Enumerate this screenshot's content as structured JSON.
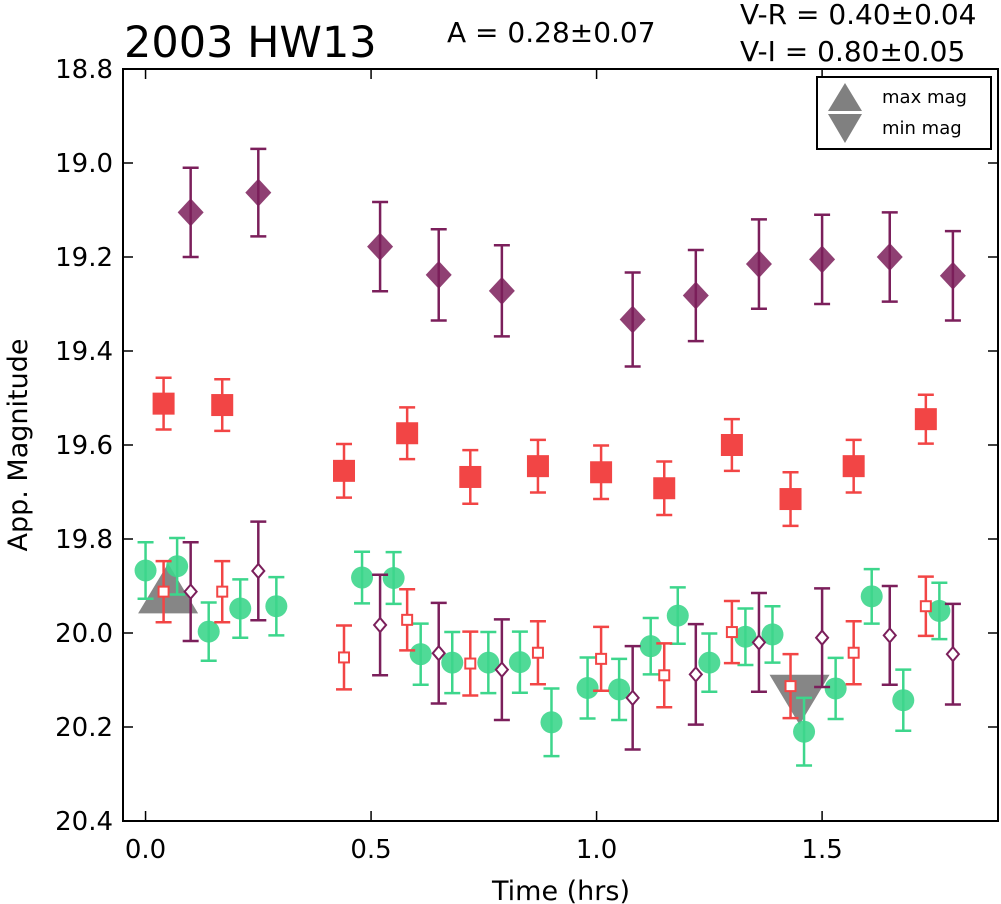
{
  "chart_data": {
    "type": "scatter",
    "title": "2003 HW13",
    "annotations": {
      "amplitude": "A  = 0.28±0.07",
      "v_minus_r": "V-R = 0.40±0.04",
      "v_minus_i": "V-I  = 0.80±0.05"
    },
    "xlabel": "Time (hrs)",
    "ylabel": "App. Magnitude",
    "xlim": [
      -0.05,
      1.89
    ],
    "ylim": [
      20.4,
      18.8
    ],
    "y_inverted": true,
    "xticks": [
      "0.0",
      "0.5",
      "1.0",
      "1.5"
    ],
    "xtick_values": [
      0.0,
      0.5,
      1.0,
      1.5
    ],
    "yticks": [
      "18.8",
      "19.0",
      "19.2",
      "19.4",
      "19.6",
      "19.8",
      "20.0",
      "20.2",
      "20.4"
    ],
    "ytick_values": [
      18.8,
      19.0,
      19.2,
      19.4,
      19.6,
      19.8,
      20.0,
      20.2,
      20.4
    ],
    "grid": false,
    "legend": {
      "position": "top-right",
      "entries": [
        {
          "label": "max mag",
          "marker": "triangle-up",
          "color": "#808080"
        },
        {
          "label": "min mag",
          "marker": "triangle-down",
          "color": "#808080"
        }
      ]
    },
    "series": [
      {
        "marker": "diamond-filled",
        "color": "#7b1f5b",
        "points": [
          {
            "x": 0.1,
            "y": 19.105,
            "err": 0.095
          },
          {
            "x": 0.25,
            "y": 19.063,
            "err": 0.093
          },
          {
            "x": 0.52,
            "y": 19.178,
            "err": 0.095
          },
          {
            "x": 0.65,
            "y": 19.238,
            "err": 0.097
          },
          {
            "x": 0.79,
            "y": 19.272,
            "err": 0.097
          },
          {
            "x": 1.08,
            "y": 19.333,
            "err": 0.1
          },
          {
            "x": 1.22,
            "y": 19.282,
            "err": 0.097
          },
          {
            "x": 1.36,
            "y": 19.215,
            "err": 0.095
          },
          {
            "x": 1.5,
            "y": 19.205,
            "err": 0.095
          },
          {
            "x": 1.65,
            "y": 19.2,
            "err": 0.095
          },
          {
            "x": 1.79,
            "y": 19.24,
            "err": 0.095
          }
        ]
      },
      {
        "marker": "square-filled",
        "color": "#f24545",
        "points": [
          {
            "x": 0.04,
            "y": 19.512,
            "err": 0.055
          },
          {
            "x": 0.17,
            "y": 19.515,
            "err": 0.055
          },
          {
            "x": 0.44,
            "y": 19.655,
            "err": 0.057
          },
          {
            "x": 0.58,
            "y": 19.575,
            "err": 0.055
          },
          {
            "x": 0.72,
            "y": 19.668,
            "err": 0.057
          },
          {
            "x": 0.87,
            "y": 19.645,
            "err": 0.056
          },
          {
            "x": 1.01,
            "y": 19.658,
            "err": 0.057
          },
          {
            "x": 1.15,
            "y": 19.692,
            "err": 0.057
          },
          {
            "x": 1.3,
            "y": 19.6,
            "err": 0.055
          },
          {
            "x": 1.43,
            "y": 19.715,
            "err": 0.057
          },
          {
            "x": 1.57,
            "y": 19.645,
            "err": 0.056
          },
          {
            "x": 1.73,
            "y": 19.545,
            "err": 0.052
          }
        ]
      },
      {
        "marker": "circle-filled",
        "color": "#3dd68c",
        "points": [
          {
            "x": 0.0,
            "y": 19.867,
            "err": 0.06
          },
          {
            "x": 0.07,
            "y": 19.858,
            "err": 0.06
          },
          {
            "x": 0.14,
            "y": 19.997,
            "err": 0.062
          },
          {
            "x": 0.21,
            "y": 19.948,
            "err": 0.062
          },
          {
            "x": 0.29,
            "y": 19.943,
            "err": 0.062
          },
          {
            "x": 0.48,
            "y": 19.882,
            "err": 0.055
          },
          {
            "x": 0.55,
            "y": 19.883,
            "err": 0.055
          },
          {
            "x": 0.61,
            "y": 20.045,
            "err": 0.065
          },
          {
            "x": 0.68,
            "y": 20.063,
            "err": 0.065
          },
          {
            "x": 0.76,
            "y": 20.063,
            "err": 0.065
          },
          {
            "x": 0.83,
            "y": 20.062,
            "err": 0.065
          },
          {
            "x": 0.9,
            "y": 20.19,
            "err": 0.072
          },
          {
            "x": 0.98,
            "y": 20.117,
            "err": 0.065
          },
          {
            "x": 1.05,
            "y": 20.12,
            "err": 0.065
          },
          {
            "x": 1.12,
            "y": 20.028,
            "err": 0.06
          },
          {
            "x": 1.18,
            "y": 19.963,
            "err": 0.06
          },
          {
            "x": 1.25,
            "y": 20.063,
            "err": 0.062
          },
          {
            "x": 1.33,
            "y": 20.008,
            "err": 0.06
          },
          {
            "x": 1.39,
            "y": 20.003,
            "err": 0.06
          },
          {
            "x": 1.46,
            "y": 20.21,
            "err": 0.072
          },
          {
            "x": 1.53,
            "y": 20.118,
            "err": 0.065
          },
          {
            "x": 1.61,
            "y": 19.922,
            "err": 0.058
          },
          {
            "x": 1.68,
            "y": 20.143,
            "err": 0.065
          },
          {
            "x": 1.76,
            "y": 19.953,
            "err": 0.06
          }
        ]
      },
      {
        "marker": "square-open",
        "color": "#f24545",
        "points": [
          {
            "x": 0.04,
            "y": 19.912,
            "err": 0.065
          },
          {
            "x": 0.17,
            "y": 19.912,
            "err": 0.065
          },
          {
            "x": 0.44,
            "y": 20.052,
            "err": 0.068
          },
          {
            "x": 0.58,
            "y": 19.972,
            "err": 0.065
          },
          {
            "x": 0.72,
            "y": 20.065,
            "err": 0.068
          },
          {
            "x": 0.87,
            "y": 20.042,
            "err": 0.067
          },
          {
            "x": 1.01,
            "y": 20.055,
            "err": 0.068
          },
          {
            "x": 1.15,
            "y": 20.09,
            "err": 0.068
          },
          {
            "x": 1.3,
            "y": 19.998,
            "err": 0.066
          },
          {
            "x": 1.43,
            "y": 20.113,
            "err": 0.068
          },
          {
            "x": 1.57,
            "y": 20.042,
            "err": 0.067
          },
          {
            "x": 1.73,
            "y": 19.943,
            "err": 0.063
          }
        ]
      },
      {
        "marker": "diamond-open",
        "color": "#7b1f5b",
        "points": [
          {
            "x": 0.1,
            "y": 19.912,
            "err": 0.105
          },
          {
            "x": 0.25,
            "y": 19.868,
            "err": 0.105
          },
          {
            "x": 0.52,
            "y": 19.983,
            "err": 0.107
          },
          {
            "x": 0.65,
            "y": 20.043,
            "err": 0.107
          },
          {
            "x": 0.79,
            "y": 20.078,
            "err": 0.107
          },
          {
            "x": 1.08,
            "y": 20.138,
            "err": 0.11
          },
          {
            "x": 1.22,
            "y": 20.088,
            "err": 0.107
          },
          {
            "x": 1.36,
            "y": 20.02,
            "err": 0.105
          },
          {
            "x": 1.5,
            "y": 20.01,
            "err": 0.105
          },
          {
            "x": 1.65,
            "y": 20.005,
            "err": 0.105
          },
          {
            "x": 1.79,
            "y": 20.045,
            "err": 0.107
          }
        ]
      }
    ],
    "extrema": [
      {
        "type": "max",
        "x": 0.05,
        "y": 19.905,
        "color": "#808080"
      },
      {
        "type": "min",
        "x": 1.45,
        "y": 20.142,
        "color": "#808080"
      }
    ]
  }
}
